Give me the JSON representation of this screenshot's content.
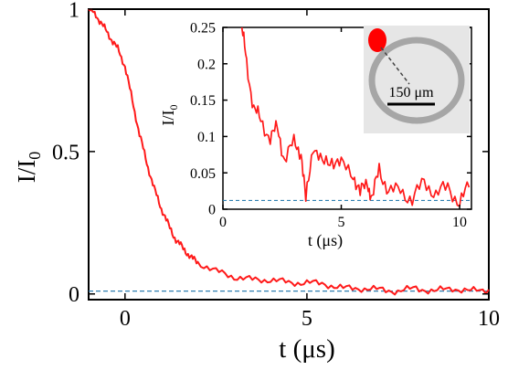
{
  "chart_data": [
    {
      "type": "line",
      "xlabel": "t (μs)",
      "ylabel_main": "I/I",
      "ylabel_sub": "0",
      "xlim": [
        -1,
        10
      ],
      "ylim": [
        -0.02,
        1
      ],
      "xticks": [
        0,
        5,
        10
      ],
      "xtick_labels": [
        "0",
        "5",
        "10"
      ],
      "yticks": [
        0,
        0.5,
        1
      ],
      "ytick_labels": [
        "0",
        "0.5",
        "1"
      ],
      "baseline": 0.01,
      "series": [
        {
          "x": [
            -1.0,
            -0.8,
            -0.6,
            -0.4,
            -0.2,
            0.0,
            0.2,
            0.4,
            0.6,
            0.8,
            1.0,
            1.2,
            1.4,
            1.6,
            1.8,
            2.0,
            2.5,
            3.0,
            3.5,
            4.0,
            4.5,
            5.0,
            5.5,
            6.0,
            6.5,
            7.0,
            7.5,
            8.0,
            8.5,
            9.0,
            9.5,
            10.0
          ],
          "values": [
            1.0,
            0.98,
            0.94,
            0.9,
            0.86,
            0.8,
            0.68,
            0.56,
            0.46,
            0.37,
            0.3,
            0.24,
            0.19,
            0.16,
            0.13,
            0.11,
            0.08,
            0.06,
            0.05,
            0.05,
            0.04,
            0.04,
            0.035,
            0.02,
            0.02,
            0.015,
            0.01,
            0.02,
            0.01,
            0.02,
            0.01,
            0.015
          ]
        }
      ]
    },
    {
      "type": "line",
      "xlabel": "t (μs)",
      "ylabel_main": "I/I",
      "ylabel_sub": "0",
      "xlim": [
        0,
        10.5
      ],
      "ylim": [
        0,
        0.25
      ],
      "xticks": [
        0,
        5,
        10
      ],
      "xtick_labels": [
        "0",
        "5",
        "10"
      ],
      "yticks": [
        0,
        0.05,
        0.1,
        0.15,
        0.2,
        0.25
      ],
      "ytick_labels": [
        "0",
        "0.05",
        "0.1",
        "0.15",
        "0.2",
        "0.25"
      ],
      "baseline": 0.012,
      "series": [
        {
          "x": [
            0.8,
            1.0,
            1.3,
            1.6,
            2.0,
            2.3,
            2.6,
            3.0,
            3.3,
            3.5,
            3.8,
            4.2,
            4.6,
            5.0,
            5.5,
            5.8,
            6.1,
            6.3,
            6.6,
            7.0,
            7.5,
            8.0,
            8.5,
            9.0,
            9.5,
            10.0,
            10.4
          ],
          "values": [
            0.25,
            0.2,
            0.14,
            0.12,
            0.1,
            0.11,
            0.07,
            0.09,
            0.08,
            0.01,
            0.09,
            0.06,
            0.07,
            0.06,
            0.05,
            0.02,
            0.04,
            0.01,
            0.06,
            0.02,
            0.03,
            0.01,
            0.04,
            0.02,
            0.03,
            0.01,
            0.03
          ]
        }
      ]
    }
  ],
  "scale_bar_label": "150 μm",
  "colors": {
    "series": "#ff1a1a",
    "baseline": "#2e7fb0",
    "axis": "#000000",
    "marker": "#ff0000",
    "ring": "#9a9a9a",
    "ring_bg": "#e6e6e6"
  }
}
